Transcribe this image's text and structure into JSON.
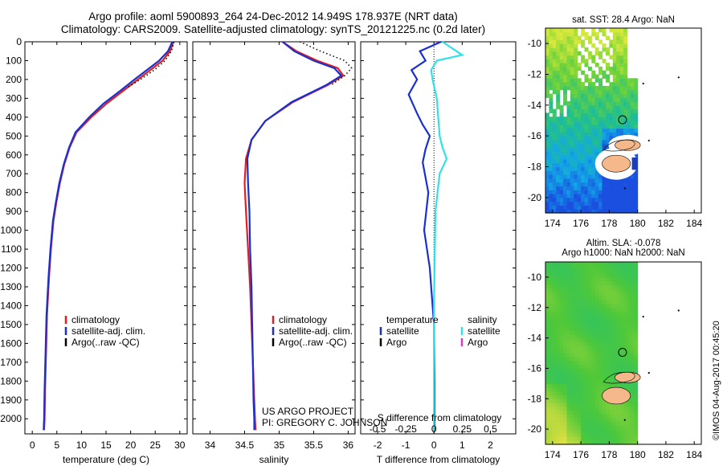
{
  "titles": {
    "line1": "Argo profile: aoml 5900893_264 24-Dec-2012 14.949S 178.937E (NRT data)",
    "line2": "Climatology: CARS2009. Satellite-adjusted climatology: synTS_20121225.nc (0.2d later)"
  },
  "project": {
    "line1": "US ARGO PROJECT",
    "line2": "PI: GREGORY C. JOHNSON"
  },
  "imos_stamp": "©IMOS 04-Aug-2017 00:45:20",
  "colors": {
    "climatology": "#e02020",
    "satellite_adj": "#1a2fd0",
    "argo": "#000000",
    "satellite_diff_temp": "#1a2fd0",
    "satellite_diff_sal": "#33e0e8",
    "argo_diff_sal": "#d040c0"
  },
  "chart_data": [
    {
      "id": "temperature",
      "type": "line",
      "xlabel": "temperature (deg C)",
      "ylabel": "",
      "xlim": [
        -1.5,
        31.5
      ],
      "ylim": [
        2080,
        0
      ],
      "xticks": [
        0,
        5,
        10,
        15,
        20,
        25,
        30
      ],
      "yticks": [
        0,
        100,
        200,
        300,
        400,
        500,
        600,
        700,
        800,
        900,
        1000,
        1100,
        1200,
        1300,
        1400,
        1500,
        1600,
        1700,
        1800,
        1900,
        2000
      ],
      "legend_position": "lower-center",
      "legend": [
        "climatology",
        "satellite-adj. clim.",
        "Argo(..raw -QC)"
      ],
      "series": [
        {
          "name": "climatology",
          "color_key": "climatology",
          "x": [
            28.7,
            28.0,
            26.5,
            24.0,
            21.5,
            18.5,
            15.0,
            12.0,
            9.0,
            7.6,
            6.5,
            5.6,
            4.9,
            4.3,
            3.8,
            3.4,
            3.0,
            2.8,
            2.6,
            2.5,
            2.4
          ],
          "y": [
            0,
            50,
            100,
            150,
            200,
            260,
            330,
            400,
            480,
            560,
            650,
            750,
            850,
            950,
            1100,
            1250,
            1450,
            1650,
            1850,
            2000,
            2060
          ]
        },
        {
          "name": "satellite-adj. clim.",
          "color_key": "satellite_adj",
          "x": [
            28.5,
            27.6,
            25.8,
            23.3,
            20.8,
            17.9,
            14.4,
            11.6,
            8.8,
            7.5,
            6.4,
            5.5,
            4.8,
            4.2,
            3.7,
            3.3,
            2.9,
            2.7,
            2.5,
            2.4,
            2.3
          ],
          "y": [
            0,
            50,
            100,
            150,
            200,
            260,
            330,
            400,
            480,
            560,
            650,
            750,
            850,
            950,
            1100,
            1250,
            1450,
            1650,
            1850,
            2000,
            2060
          ]
        },
        {
          "name": "Argo(..raw -QC)",
          "color_key": "argo",
          "dotted": true,
          "x": [
            28.8,
            28.3,
            27.0,
            24.8,
            22.0,
            19.5
          ],
          "y": [
            0,
            50,
            100,
            150,
            200,
            240
          ]
        }
      ]
    },
    {
      "id": "salinity",
      "type": "line",
      "xlabel": "salinity",
      "ylabel": "",
      "xlim": [
        33.75,
        36.1
      ],
      "ylim": [
        2080,
        0
      ],
      "xticks": [
        34,
        34.5,
        35,
        35.5,
        36
      ],
      "legend_position": "lower-center",
      "legend": [
        "climatology",
        "satellite-adj. clim.",
        "Argo(..raw -QC)"
      ],
      "series": [
        {
          "name": "climatology",
          "color_key": "climatology",
          "x": [
            35.05,
            35.25,
            35.55,
            35.85,
            35.93,
            35.7,
            35.2,
            34.8,
            34.6,
            34.52,
            34.5,
            34.52,
            34.55,
            34.58,
            34.6,
            34.62,
            34.64,
            34.65,
            34.66
          ],
          "y": [
            0,
            50,
            100,
            140,
            180,
            230,
            320,
            420,
            520,
            620,
            750,
            900,
            1100,
            1300,
            1500,
            1700,
            1900,
            2000,
            2060
          ]
        },
        {
          "name": "satellite-adj. clim.",
          "color_key": "satellite_adj",
          "x": [
            35.05,
            35.22,
            35.5,
            35.8,
            35.9,
            35.68,
            35.18,
            34.8,
            34.6,
            34.54,
            34.55,
            34.57,
            34.58,
            34.6,
            34.61,
            34.62,
            34.63,
            34.64,
            34.64
          ],
          "y": [
            0,
            50,
            100,
            140,
            180,
            230,
            320,
            420,
            520,
            620,
            750,
            900,
            1100,
            1300,
            1500,
            1700,
            1900,
            2000,
            2060
          ]
        },
        {
          "name": "Argo(..raw -QC)",
          "color_key": "argo",
          "dotted": true,
          "x": [
            35.3,
            35.6,
            35.95,
            36.05,
            35.95,
            35.75
          ],
          "y": [
            0,
            50,
            100,
            140,
            180,
            230
          ]
        }
      ]
    },
    {
      "id": "difference",
      "type": "line",
      "xlabel": "T difference from climatology",
      "xlabel2": "S difference from climatology",
      "xlim": [
        -2.6,
        2.9
      ],
      "ylim": [
        2080,
        0
      ],
      "xticks": [
        -2,
        -1,
        0,
        1,
        2
      ],
      "xticks_s": [
        "-0.5",
        "-0.25",
        "0",
        "0.25",
        "0.5"
      ],
      "legend_position": "lower-center",
      "legend_temperature": {
        "header": "temperature",
        "items": [
          "satellite",
          "Argo"
        ]
      },
      "legend_salinity": {
        "header": "salinity",
        "items": [
          "satellite",
          "Argo"
        ]
      },
      "series": [
        {
          "name": "satellite",
          "group": "temperature",
          "color_key": "satellite_diff_temp",
          "x": [
            0.25,
            -0.5,
            -0.3,
            -0.8,
            -0.6,
            -0.9,
            -0.6,
            -0.4,
            -0.15,
            -0.3,
            -0.4,
            -0.2,
            -0.35,
            -0.15,
            0.0,
            0.02,
            0.02
          ],
          "y": [
            0,
            50,
            100,
            150,
            200,
            280,
            380,
            440,
            500,
            570,
            640,
            800,
            1000,
            1200,
            1500,
            1800,
            2060
          ]
        },
        {
          "name": "satellite",
          "group": "salinity",
          "color_key": "satellite_diff_sal",
          "x": [
            0.3,
            1.0,
            0.1,
            -0.1,
            -0.05,
            0.1,
            0.15,
            0.2,
            0.3,
            0.45,
            0.2,
            0.05,
            0.0,
            0.0
          ],
          "y": [
            0,
            70,
            100,
            150,
            200,
            300,
            400,
            500,
            560,
            620,
            700,
            900,
            1400,
            2060
          ]
        }
      ]
    },
    {
      "id": "map-sst",
      "type": "heatmap",
      "title": "sat. SST: 28.4  Argo: NaN",
      "xlim": [
        173.5,
        184.5
      ],
      "ylim": [
        -21,
        -9
      ],
      "xticks": [
        174,
        176,
        178,
        180,
        182,
        184
      ],
      "yticks": [
        -10,
        -12,
        -14,
        -16,
        -18,
        -20
      ],
      "marker": {
        "lon": 178.937,
        "lat": -14.949
      }
    },
    {
      "id": "map-sla",
      "type": "heatmap",
      "title": "Altim. SLA: -0.078",
      "title2": "Argo h1000: NaN  h2000: NaN",
      "xlim": [
        173.5,
        184.5
      ],
      "ylim": [
        -21,
        -9
      ],
      "xticks": [
        174,
        176,
        178,
        180,
        182,
        184
      ],
      "yticks": [
        -10,
        -12,
        -14,
        -16,
        -18,
        -20
      ],
      "marker": {
        "lon": 178.937,
        "lat": -14.949
      }
    }
  ]
}
